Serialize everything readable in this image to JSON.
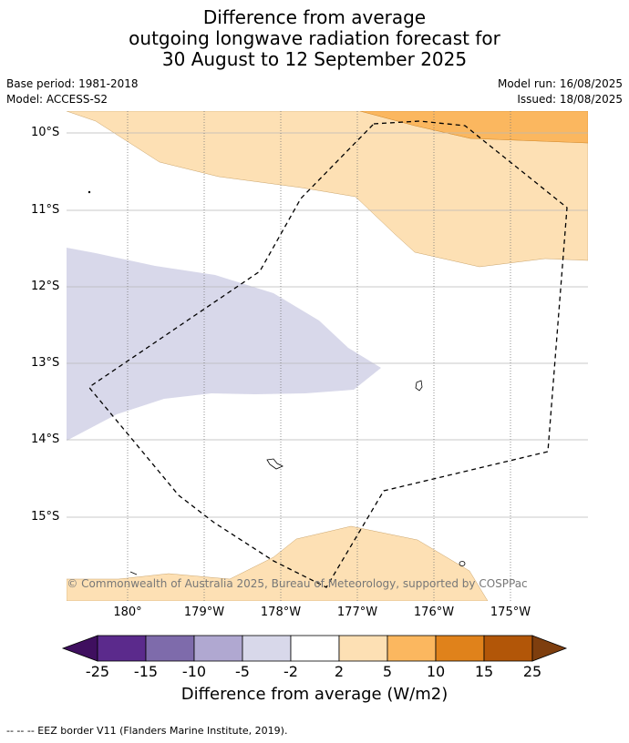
{
  "title": {
    "line1": "Difference from average",
    "line2": "outgoing longwave radiation forecast for",
    "line3": "30 August to 12 September 2025"
  },
  "meta": {
    "base_period": "Base period: 1981-2018",
    "model": "Model: ACCESS-S2",
    "model_run": "Model run: 16/08/2025",
    "issued": "Issued: 18/08/2025"
  },
  "axes": {
    "lat_labels": [
      "10°S",
      "11°S",
      "12°S",
      "13°S",
      "14°S",
      "15°S"
    ],
    "lon_labels": [
      "180°",
      "179°W",
      "178°W",
      "177°W",
      "176°W",
      "175°W"
    ]
  },
  "copyright": "© Commonwealth of Australia 2025, Bureau of Meteorology, supported by COSPPac",
  "colorbar": {
    "labels": [
      "-25",
      "-15",
      "-10",
      "-5",
      "-2",
      "2",
      "5",
      "10",
      "15",
      "25"
    ],
    "colors": [
      "#3f0f5f",
      "#5b2a8c",
      "#7e6bab",
      "#b0a8d1",
      "#d8d8ea",
      "#ffffff",
      "#fde0b4",
      "#fbb75f",
      "#e0821b",
      "#b25608",
      "#7e3e0e"
    ],
    "title": "Difference from average (W/m2)"
  },
  "footer": "--  --  -- EEZ border V11 (Flanders Marine Institute, 2019)."
}
